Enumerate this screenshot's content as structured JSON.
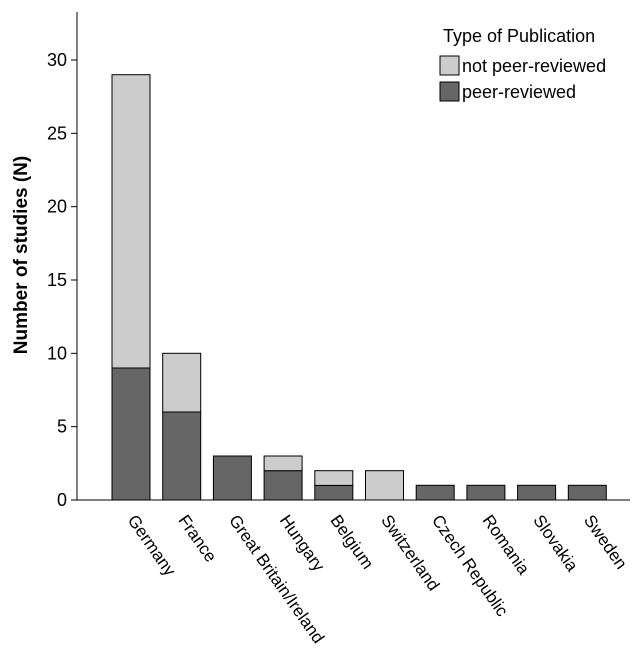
{
  "chart_data": {
    "type": "bar",
    "stacked": true,
    "title": "",
    "xlabel": "",
    "ylabel": "Number of studies (N)",
    "ylim": [
      0,
      32
    ],
    "yticks": [
      0,
      5,
      10,
      15,
      20,
      25,
      30
    ],
    "grid": false,
    "legend": {
      "title": "Type of Publication",
      "placement": "top-right"
    },
    "categories": [
      "Germany",
      "France",
      "Great Britain/Ireland",
      "Hungary",
      "Belgium",
      "Switzerland",
      "Czech Republic",
      "Romania",
      "Slovakia",
      "Sweden"
    ],
    "series": [
      {
        "name": "peer-reviewed",
        "color": "#666666",
        "values": [
          9,
          6,
          3,
          2,
          1,
          0,
          1,
          1,
          1,
          1
        ]
      },
      {
        "name": "not peer-reviewed",
        "color": "#cccccc",
        "values": [
          20,
          4,
          0,
          1,
          1,
          2,
          0,
          0,
          0,
          0
        ]
      }
    ]
  }
}
